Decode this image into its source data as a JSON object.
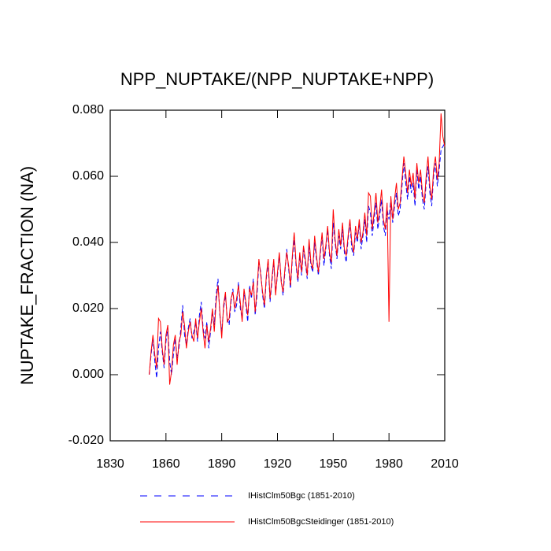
{
  "chart_data": {
    "type": "line",
    "title": "NPP_NUPTAKE/(NPP_NUPTAKE+NPP)",
    "y_label": "NUPTAKE_FRACTION  (NA)",
    "x": [
      1851,
      1852,
      1853,
      1854,
      1855,
      1856,
      1857,
      1858,
      1859,
      1860,
      1861,
      1862,
      1863,
      1864,
      1865,
      1866,
      1867,
      1868,
      1869,
      1870,
      1871,
      1872,
      1873,
      1874,
      1875,
      1876,
      1877,
      1878,
      1879,
      1880,
      1881,
      1882,
      1883,
      1884,
      1885,
      1886,
      1887,
      1888,
      1889,
      1890,
      1891,
      1892,
      1893,
      1894,
      1895,
      1896,
      1897,
      1898,
      1899,
      1900,
      1901,
      1902,
      1903,
      1904,
      1905,
      1906,
      1907,
      1908,
      1909,
      1910,
      1911,
      1912,
      1913,
      1914,
      1915,
      1916,
      1917,
      1918,
      1919,
      1920,
      1921,
      1922,
      1923,
      1924,
      1925,
      1926,
      1927,
      1928,
      1929,
      1930,
      1931,
      1932,
      1933,
      1934,
      1935,
      1936,
      1937,
      1938,
      1939,
      1940,
      1941,
      1942,
      1943,
      1944,
      1945,
      1946,
      1947,
      1948,
      1949,
      1950,
      1951,
      1952,
      1953,
      1954,
      1955,
      1956,
      1957,
      1958,
      1959,
      1960,
      1961,
      1962,
      1963,
      1964,
      1965,
      1966,
      1967,
      1968,
      1969,
      1970,
      1971,
      1972,
      1973,
      1974,
      1975,
      1976,
      1977,
      1978,
      1979,
      1980,
      1981,
      1982,
      1983,
      1984,
      1985,
      1986,
      1987,
      1988,
      1989,
      1990,
      1991,
      1992,
      1993,
      1994,
      1995,
      1996,
      1997,
      1998,
      1999,
      2000,
      2001,
      2002,
      2003,
      2004,
      2005,
      2006,
      2007,
      2008,
      2009,
      2010
    ],
    "series": [
      {
        "name": "IHistClm50Bgc (1851-2010)",
        "color": "#0000ff",
        "dash": true,
        "values": [
          0.0,
          0.006,
          0.011,
          0.004,
          -0.001,
          0.008,
          0.013,
          0.007,
          0.002,
          0.01,
          0.014,
          0.004,
          0.0,
          0.006,
          0.011,
          0.005,
          0.008,
          0.014,
          0.021,
          0.012,
          0.009,
          0.014,
          0.017,
          0.011,
          0.013,
          0.016,
          0.01,
          0.018,
          0.022,
          0.014,
          0.011,
          0.016,
          0.008,
          0.013,
          0.019,
          0.015,
          0.024,
          0.029,
          0.018,
          0.013,
          0.02,
          0.024,
          0.017,
          0.015,
          0.022,
          0.026,
          0.019,
          0.021,
          0.028,
          0.02,
          0.017,
          0.025,
          0.021,
          0.016,
          0.027,
          0.023,
          0.029,
          0.018,
          0.024,
          0.034,
          0.031,
          0.024,
          0.02,
          0.029,
          0.034,
          0.022,
          0.028,
          0.034,
          0.025,
          0.03,
          0.036,
          0.029,
          0.024,
          0.031,
          0.038,
          0.032,
          0.026,
          0.035,
          0.041,
          0.033,
          0.028,
          0.036,
          0.03,
          0.038,
          0.034,
          0.029,
          0.039,
          0.033,
          0.031,
          0.04,
          0.035,
          0.03,
          0.036,
          0.042,
          0.033,
          0.038,
          0.044,
          0.036,
          0.032,
          0.046,
          0.04,
          0.035,
          0.042,
          0.038,
          0.044,
          0.037,
          0.034,
          0.041,
          0.046,
          0.038,
          0.036,
          0.043,
          0.04,
          0.046,
          0.038,
          0.042,
          0.047,
          0.04,
          0.051,
          0.049,
          0.042,
          0.047,
          0.052,
          0.044,
          0.048,
          0.053,
          0.045,
          0.042,
          0.05,
          0.047,
          0.053,
          0.046,
          0.051,
          0.055,
          0.048,
          0.05,
          0.057,
          0.064,
          0.058,
          0.053,
          0.06,
          0.055,
          0.058,
          0.051,
          0.062,
          0.056,
          0.06,
          0.053,
          0.05,
          0.058,
          0.063,
          0.055,
          0.051,
          0.06,
          0.064,
          0.057,
          0.062,
          0.068,
          0.069,
          0.07
        ]
      },
      {
        "name": "IHistClm50BgcSteidinger (1851-2010)",
        "color": "#ff0000",
        "dash": false,
        "values": [
          0.0,
          0.007,
          0.012,
          0.006,
          0.002,
          0.017,
          0.016,
          0.008,
          0.003,
          0.012,
          0.015,
          -0.003,
          0.001,
          0.009,
          0.012,
          0.003,
          0.01,
          0.012,
          0.019,
          0.015,
          0.008,
          0.013,
          0.016,
          0.012,
          0.01,
          0.017,
          0.011,
          0.016,
          0.02,
          0.013,
          0.008,
          0.015,
          0.01,
          0.014,
          0.02,
          0.013,
          0.022,
          0.027,
          0.019,
          0.011,
          0.021,
          0.025,
          0.016,
          0.017,
          0.023,
          0.025,
          0.02,
          0.023,
          0.027,
          0.022,
          0.016,
          0.026,
          0.022,
          0.018,
          0.026,
          0.024,
          0.028,
          0.019,
          0.026,
          0.035,
          0.03,
          0.025,
          0.021,
          0.03,
          0.035,
          0.023,
          0.029,
          0.035,
          0.024,
          0.031,
          0.037,
          0.028,
          0.025,
          0.032,
          0.037,
          0.033,
          0.027,
          0.036,
          0.043,
          0.034,
          0.029,
          0.037,
          0.031,
          0.039,
          0.035,
          0.03,
          0.041,
          0.034,
          0.032,
          0.042,
          0.036,
          0.031,
          0.037,
          0.043,
          0.035,
          0.039,
          0.045,
          0.037,
          0.034,
          0.05,
          0.041,
          0.036,
          0.044,
          0.039,
          0.046,
          0.038,
          0.036,
          0.042,
          0.047,
          0.04,
          0.037,
          0.045,
          0.041,
          0.047,
          0.04,
          0.043,
          0.049,
          0.042,
          0.055,
          0.054,
          0.044,
          0.049,
          0.055,
          0.046,
          0.05,
          0.056,
          0.047,
          0.044,
          0.052,
          0.016,
          0.054,
          0.047,
          0.053,
          0.058,
          0.05,
          0.052,
          0.059,
          0.066,
          0.061,
          0.055,
          0.062,
          0.057,
          0.061,
          0.053,
          0.064,
          0.058,
          0.062,
          0.055,
          0.052,
          0.06,
          0.066,
          0.057,
          0.053,
          0.062,
          0.066,
          0.059,
          0.064,
          0.079,
          0.072,
          0.069
        ]
      }
    ],
    "xlim": [
      1830,
      2010
    ],
    "xticks": [
      1830,
      1860,
      1890,
      1920,
      1950,
      1980,
      2010
    ],
    "ylim": [
      -0.02,
      0.08
    ],
    "yticks": [
      {
        "value": -0.02,
        "label": "-0.020"
      },
      {
        "value": 0,
        "label": "0.000"
      },
      {
        "value": 0.02,
        "label": "0.020"
      },
      {
        "value": 0.04,
        "label": "0.040"
      },
      {
        "value": 0.06,
        "label": "0.060"
      },
      {
        "value": 0.08,
        "label": "0.080"
      }
    ]
  }
}
